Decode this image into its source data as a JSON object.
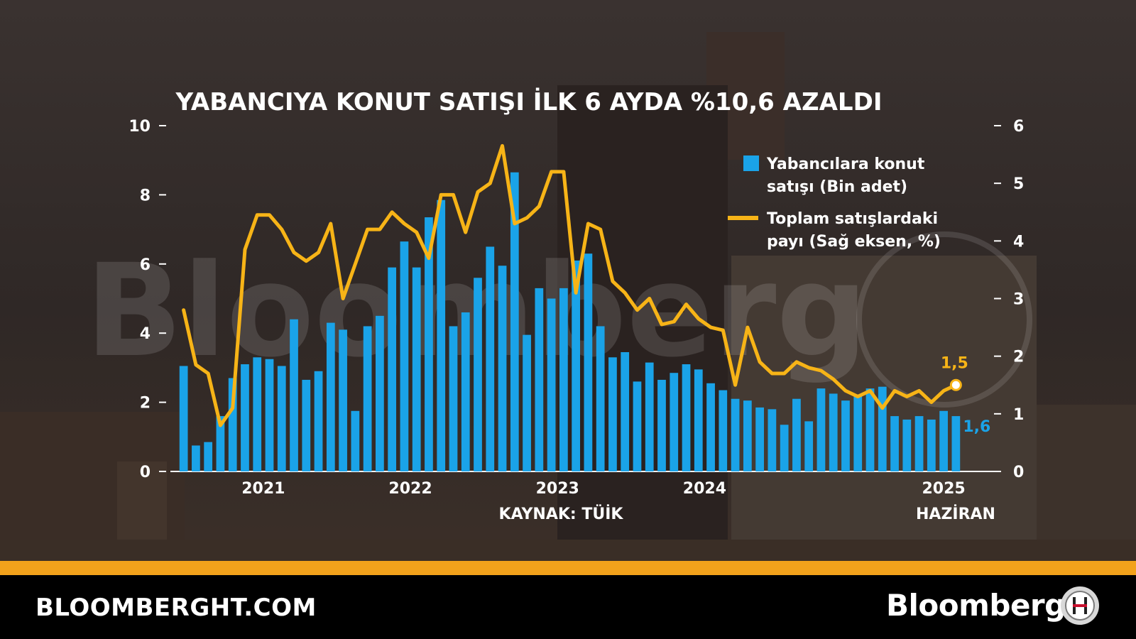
{
  "chart_data": {
    "type": "bar+line",
    "title": "YABANCIYA KONUT SATIŞI İLK 6 AYDA %10,6 AZALDI",
    "source": "KAYNAK: TÜİK",
    "last_period_label": "HAZİRAN",
    "y_left": {
      "ticks": [
        "0",
        "2",
        "4",
        "6",
        "8",
        "10"
      ],
      "min": 0,
      "max": 10
    },
    "y_right": {
      "ticks": [
        "0",
        "1",
        "2",
        "3",
        "4",
        "5",
        "6"
      ],
      "min": 0,
      "max": 6
    },
    "x_ticks": [
      "2021",
      "2022",
      "2023",
      "2024",
      "2025"
    ],
    "legend": {
      "bar_label_line1": "Yabancılara konut",
      "bar_label_line2": "satışı (Bin adet)",
      "line_label_line1": "Toplam satışlardaki",
      "line_label_line2": "payı (Sağ eksen, %)"
    },
    "bar_end_label": "1,6",
    "line_end_label": "1,5",
    "series": [
      {
        "name": "Yabancılara konut satışı (Bin adet)",
        "axis": "left",
        "values": [
          3.05,
          0.75,
          0.85,
          1.6,
          2.7,
          3.1,
          3.3,
          3.25,
          3.05,
          4.4,
          2.65,
          2.9,
          4.3,
          4.1,
          1.75,
          4.2,
          4.5,
          5.9,
          6.65,
          5.9,
          7.35,
          7.85,
          4.2,
          4.6,
          5.6,
          6.5,
          5.95,
          8.65,
          3.95,
          5.3,
          5.0,
          5.3,
          6.1,
          6.3,
          4.2,
          3.3,
          3.45,
          2.6,
          3.15,
          2.65,
          2.85,
          3.1,
          2.95,
          2.55,
          2.35,
          2.1,
          2.05,
          1.85,
          1.8,
          1.35,
          2.1,
          1.45,
          2.4,
          2.25,
          2.05,
          2.2,
          2.4,
          2.45,
          1.6,
          1.5,
          1.6,
          1.5,
          1.75,
          1.6
        ]
      },
      {
        "name": "Toplam satışlardaki payı (Sağ eksen, %)",
        "axis": "right",
        "values": [
          2.8,
          1.85,
          1.7,
          0.8,
          1.1,
          3.85,
          4.45,
          4.45,
          4.2,
          3.8,
          3.65,
          3.8,
          4.3,
          3.0,
          3.6,
          4.2,
          4.2,
          4.5,
          4.3,
          4.15,
          3.7,
          4.8,
          4.8,
          4.15,
          4.85,
          5.0,
          5.65,
          4.3,
          4.4,
          4.6,
          5.2,
          5.2,
          3.1,
          4.3,
          4.2,
          3.3,
          3.1,
          2.8,
          3.0,
          2.55,
          2.6,
          2.9,
          2.65,
          2.5,
          2.45,
          1.5,
          2.5,
          1.9,
          1.7,
          1.7,
          1.9,
          1.8,
          1.75,
          1.6,
          1.4,
          1.3,
          1.4,
          1.1,
          1.4,
          1.3,
          1.4,
          1.2,
          1.4,
          1.5
        ]
      }
    ],
    "colors": {
      "bars": "#1aa3e8",
      "line": "#f7b417",
      "text": "#ffffff",
      "accent": "#f2a21b"
    },
    "watermark": "Bloomberg",
    "grid": false
  },
  "footer": {
    "site": "BLOOMBERGHT.COM",
    "brand": "Bloomberg"
  }
}
